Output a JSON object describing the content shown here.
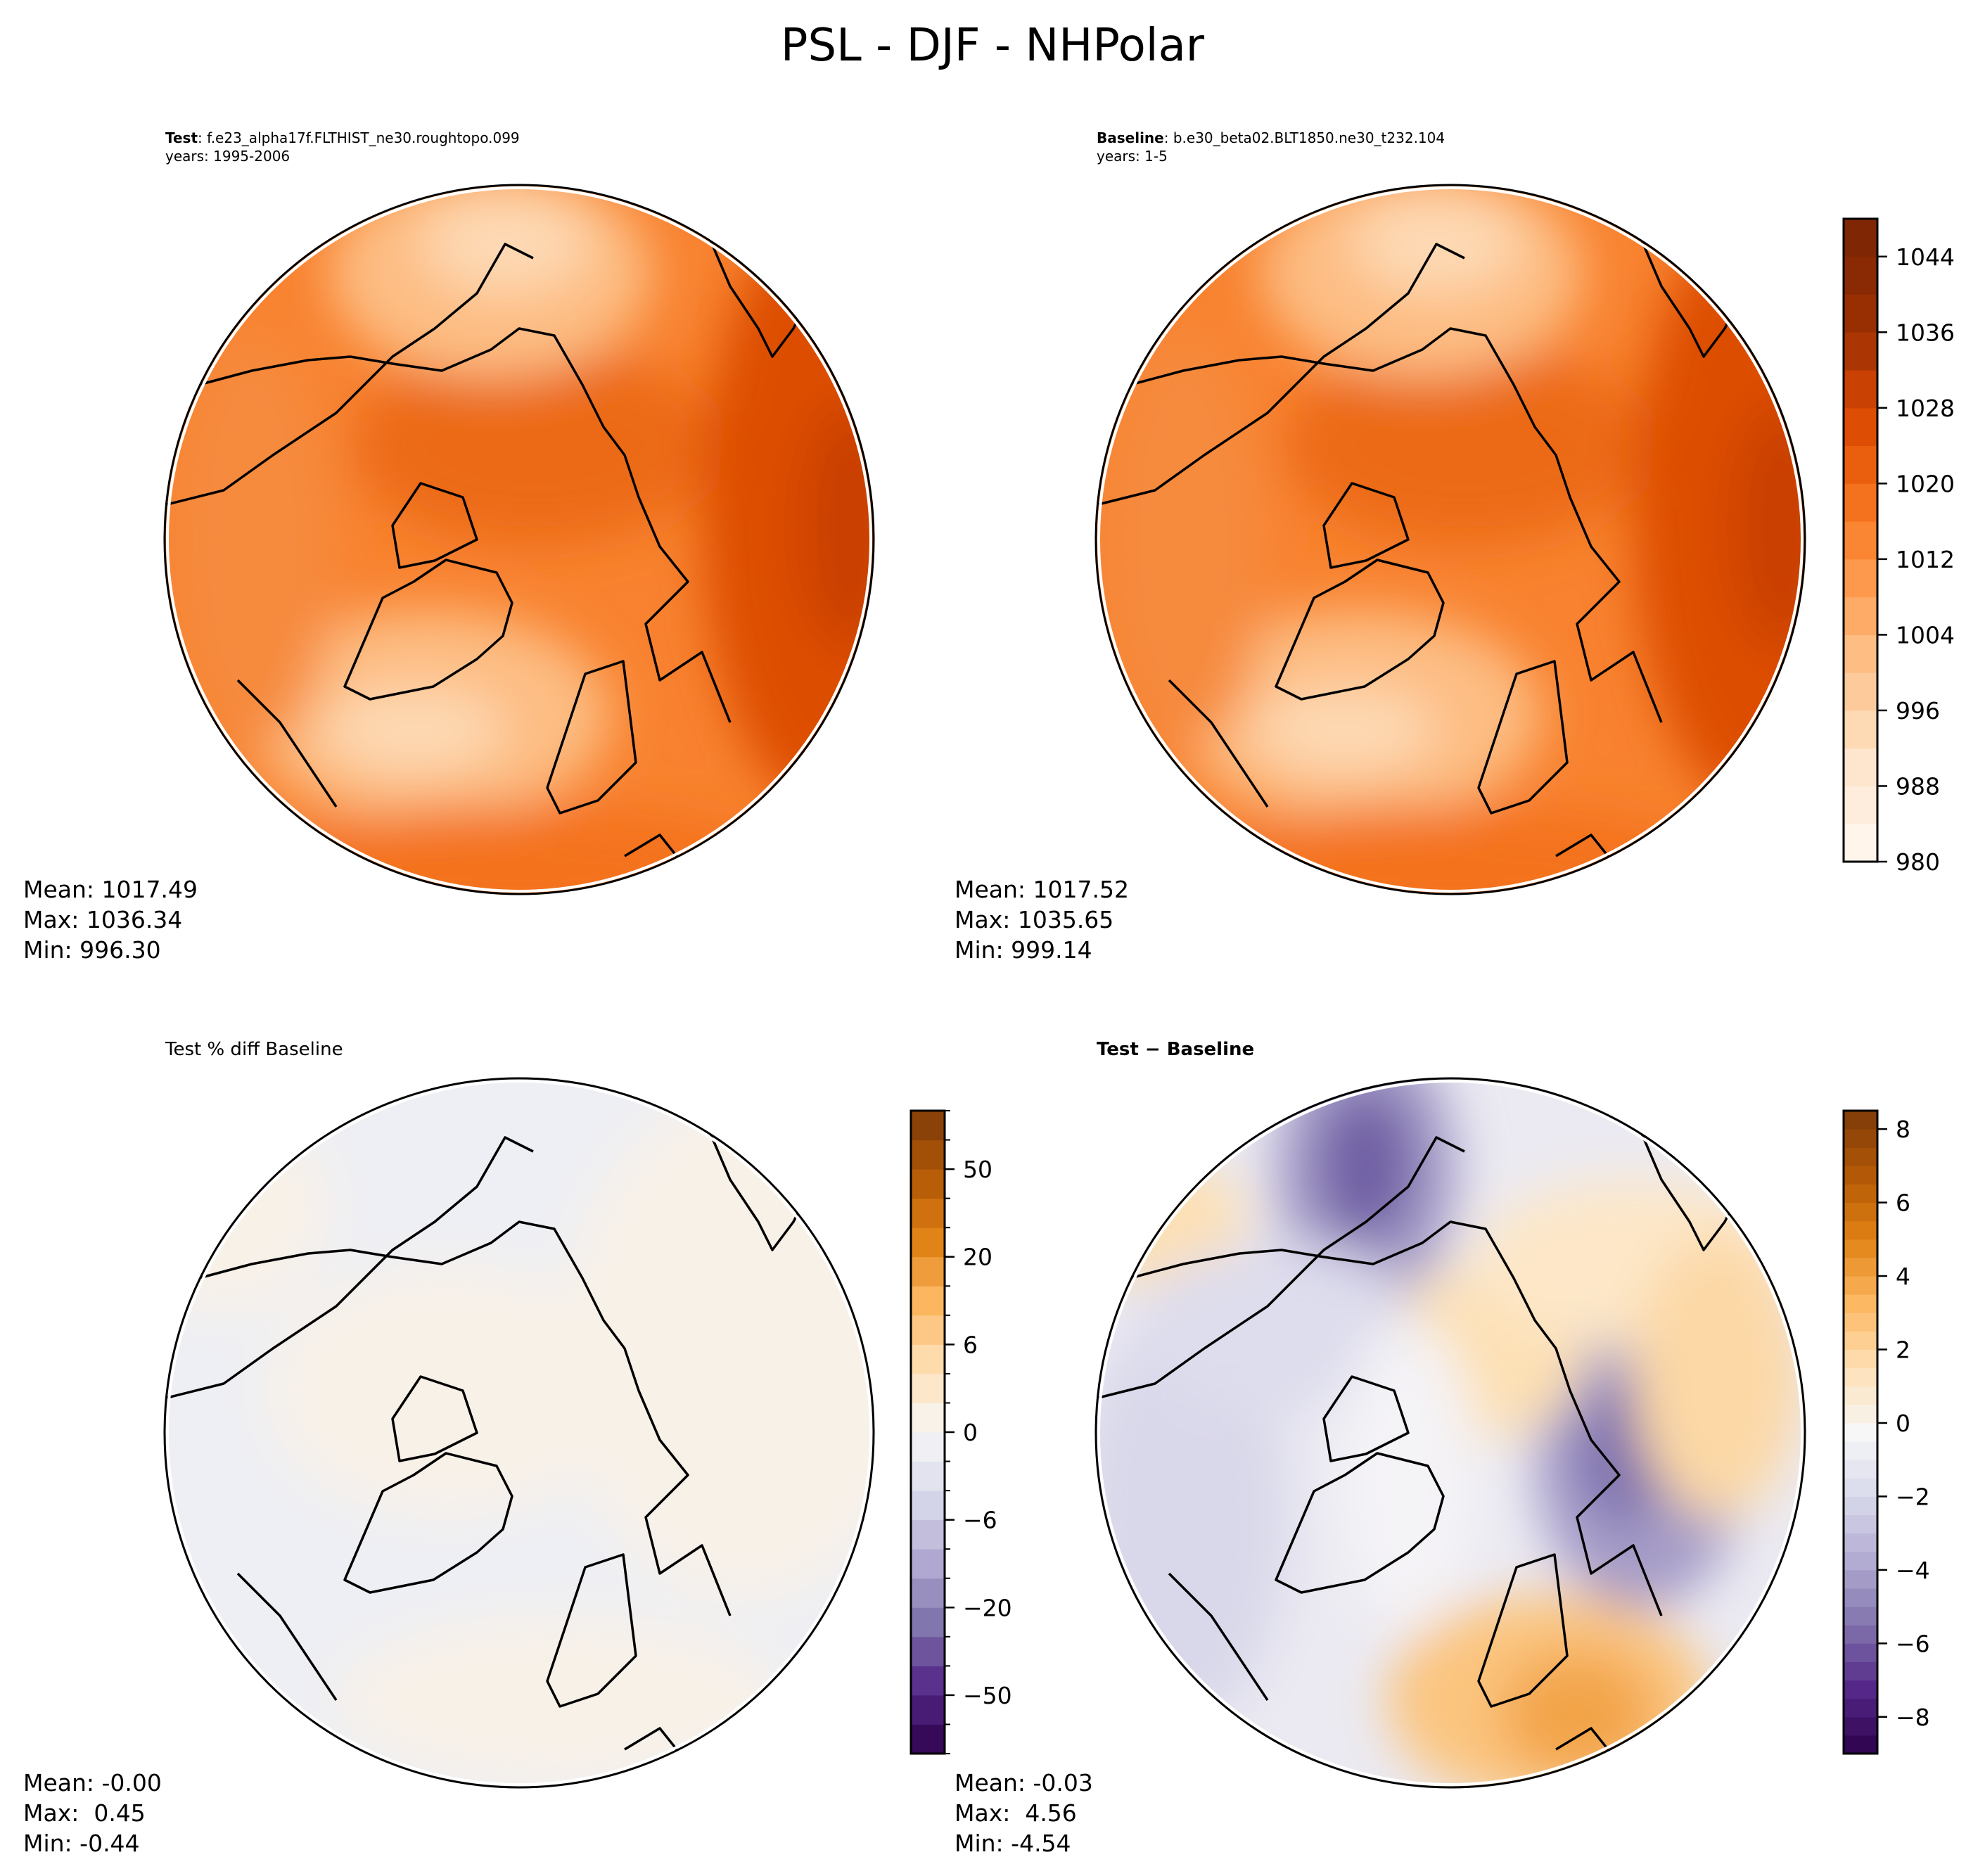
{
  "suptitle": "PSL - DJF - NHPolar",
  "panels": {
    "test": {
      "label_bold": "Test",
      "label_rest": ": f.e23_alpha17f.FLTHIST_ne30.roughtopo.099",
      "years": "years: 1995-2006",
      "stats": {
        "mean": "Mean: 1017.49",
        "max": "Max: 1036.34",
        "min": "Min: 996.30"
      }
    },
    "baseline": {
      "label_bold": "Baseline",
      "label_rest": ": b.e30_beta02.BLT1850.ne30_t232.104",
      "years": "years: 1-5",
      "stats": {
        "mean": "Mean: 1017.52",
        "max": "Max: 1035.65",
        "min": "Min: 999.14"
      }
    },
    "pctdiff": {
      "title": "Test % diff Baseline",
      "stats": {
        "mean": "Mean: -0.00",
        "max": "Max:  0.45",
        "min": "Min: -0.44"
      }
    },
    "diff": {
      "title": "Test − Baseline",
      "stats": {
        "mean": "Mean: -0.03",
        "max": "Max:  4.56",
        "min": "Min: -4.54"
      }
    }
  },
  "chart_data": [
    {
      "type": "heatmap",
      "projection": "north-polar-stereographic",
      "panel": "test",
      "colormap": "Oranges",
      "colorbar": {
        "levels_start": 980,
        "levels_end": 1048,
        "levels_step": 4,
        "ticks": [
          "1044",
          "1036",
          "1028",
          "1020",
          "1012",
          "1004",
          "996",
          "988",
          "980"
        ],
        "colors": [
          "#fff5eb",
          "#feeddc",
          "#fee6ce",
          "#fdd9b4",
          "#fdcb9b",
          "#fdbd83",
          "#fdab67",
          "#fd994d",
          "#fa8532",
          "#f4721e",
          "#ea5f0e",
          "#dd4d04",
          "#c94103",
          "#ac3603",
          "#982f03",
          "#8a2a04",
          "#7f2704"
        ]
      }
    },
    {
      "type": "heatmap",
      "projection": "north-polar-stereographic",
      "panel": "baseline",
      "colormap": "Oranges",
      "colorbar": "shared with test"
    },
    {
      "type": "heatmap",
      "projection": "north-polar-stereographic",
      "panel": "pctdiff",
      "colormap": "PuOr_r",
      "colorbar": {
        "levels": [
          -100,
          -75,
          -50,
          -40,
          -30,
          -20,
          -15,
          -10,
          -6,
          -4,
          -2,
          0,
          2,
          4,
          6,
          10,
          15,
          20,
          30,
          40,
          50,
          75,
          100
        ],
        "ticks": [
          "50",
          "20",
          "6",
          "0",
          "−6",
          "−20",
          "−50"
        ],
        "tick_values": [
          50,
          20,
          6,
          0,
          -6,
          -20,
          -50
        ]
      }
    },
    {
      "type": "heatmap",
      "projection": "north-polar-stereographic",
      "panel": "diff",
      "colormap": "PuOr_r",
      "colorbar": {
        "levels_start": -9,
        "levels_end": 8.5,
        "levels_step": 0.5,
        "ticks": [
          "8",
          "6",
          "4",
          "2",
          "0",
          "−2",
          "−4",
          "−6",
          "−8"
        ],
        "tick_values": [
          8,
          6,
          4,
          2,
          0,
          -2,
          -4,
          -6,
          -8
        ]
      }
    }
  ],
  "puor_stops": [
    "#2d004b",
    "#542788",
    "#8073ac",
    "#b2abd2",
    "#d8daeb",
    "#f7f7f7",
    "#fee0b6",
    "#fdb863",
    "#e08214",
    "#b35806",
    "#7f3b08"
  ]
}
